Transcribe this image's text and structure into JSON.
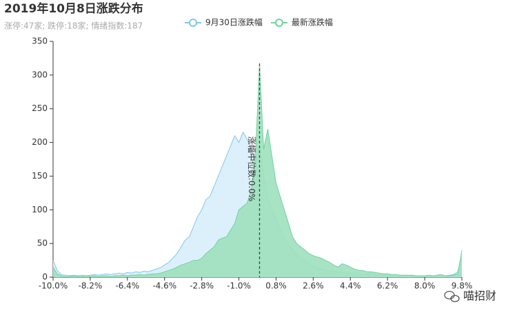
{
  "chart_data": {
    "type": "area",
    "title": "2019年10月8日涨跌分布",
    "subtitle": "涨停:47家; 跌停:18家; 情绪指数:187",
    "watermark": "喵招财",
    "x": [
      -10.0,
      -9.8,
      -9.6,
      -9.4,
      -9.2,
      -9.0,
      -8.8,
      -8.6,
      -8.4,
      -8.2,
      -8.0,
      -7.8,
      -7.6,
      -7.4,
      -7.2,
      -7.0,
      -6.8,
      -6.6,
      -6.4,
      -6.2,
      -6.0,
      -5.8,
      -5.6,
      -5.4,
      -5.2,
      -5.0,
      -4.8,
      -4.6,
      -4.4,
      -4.2,
      -4.0,
      -3.8,
      -3.6,
      -3.4,
      -3.2,
      -3.0,
      -2.8,
      -2.6,
      -2.4,
      -2.2,
      -2.0,
      -1.8,
      -1.6,
      -1.4,
      -1.2,
      -1.0,
      -0.8,
      -0.6,
      -0.4,
      -0.2,
      0.0,
      0.2,
      0.4,
      0.6,
      0.8,
      1.0,
      1.2,
      1.4,
      1.6,
      1.8,
      2.0,
      2.2,
      2.4,
      2.6,
      2.8,
      3.0,
      3.2,
      3.4,
      3.6,
      3.8,
      4.0,
      4.2,
      4.4,
      4.6,
      4.8,
      5.0,
      5.2,
      5.4,
      5.6,
      5.8,
      6.0,
      6.2,
      6.4,
      6.6,
      6.8,
      7.0,
      7.2,
      7.4,
      7.6,
      7.8,
      8.0,
      8.2,
      8.4,
      8.6,
      8.8,
      9.0,
      9.2,
      9.4,
      9.6,
      9.8
    ],
    "series": [
      {
        "name": "9月30日涨跌幅",
        "color": "#7ec8e9",
        "fill": "#dcf0fb",
        "values": [
          25,
          10,
          4,
          3,
          2,
          3,
          2,
          3,
          2,
          3,
          4,
          3,
          4,
          5,
          4,
          5,
          6,
          5,
          7,
          6,
          8,
          7,
          9,
          8,
          10,
          12,
          14,
          18,
          22,
          28,
          35,
          45,
          55,
          60,
          75,
          90,
          100,
          115,
          120,
          135,
          150,
          165,
          180,
          195,
          210,
          200,
          215,
          205,
          190,
          170,
          195,
          150,
          115,
          100,
          85,
          70,
          58,
          48,
          40,
          33,
          28,
          24,
          20,
          16,
          14,
          12,
          10,
          9,
          8,
          8,
          7,
          6,
          6,
          5,
          5,
          4,
          4,
          4,
          3,
          3,
          3,
          3,
          3,
          2,
          2,
          2,
          2,
          2,
          2,
          2,
          2,
          2,
          2,
          2,
          2,
          2,
          3,
          4,
          8,
          30
        ]
      },
      {
        "name": "最新涨跌幅",
        "color": "#6fd3a0",
        "fill": "#9ee0bd",
        "values": [
          15,
          5,
          2,
          1,
          1,
          2,
          1,
          1,
          2,
          1,
          2,
          1,
          2,
          2,
          1,
          2,
          2,
          3,
          2,
          3,
          3,
          4,
          3,
          4,
          5,
          5,
          6,
          8,
          10,
          12,
          15,
          18,
          20,
          22,
          25,
          25,
          28,
          35,
          40,
          45,
          55,
          58,
          60,
          70,
          80,
          100,
          105,
          110,
          130,
          180,
          315,
          190,
          220,
          180,
          140,
          120,
          100,
          80,
          60,
          50,
          45,
          40,
          35,
          32,
          30,
          28,
          25,
          22,
          18,
          15,
          20,
          18,
          15,
          12,
          10,
          10,
          8,
          8,
          7,
          6,
          5,
          5,
          4,
          4,
          3,
          3,
          3,
          3,
          2,
          2,
          2,
          3,
          2,
          3,
          4,
          2,
          2,
          3,
          5,
          40
        ]
      }
    ],
    "median_line": {
      "value": 0.0,
      "label": "涨幅中位数:0.0%"
    },
    "xlim": [
      -10.0,
      9.8
    ],
    "xticks": [
      {
        "value": -10.0,
        "label": "-10.0%"
      },
      {
        "value": -8.2,
        "label": "-8.2%"
      },
      {
        "value": -6.4,
        "label": "-6.4%"
      },
      {
        "value": -4.6,
        "label": "-4.6%"
      },
      {
        "value": -2.8,
        "label": "-2.8%"
      },
      {
        "value": -1.0,
        "label": "-1.0%"
      },
      {
        "value": 0.8,
        "label": "0.8%"
      },
      {
        "value": 2.6,
        "label": "2.6%"
      },
      {
        "value": 4.4,
        "label": "4.4%"
      },
      {
        "value": 6.2,
        "label": "6.2%"
      },
      {
        "value": 8.0,
        "label": "8.0%"
      },
      {
        "value": 9.8,
        "label": "9.8%"
      }
    ],
    "ylim": [
      0,
      350
    ],
    "yticks": [
      0,
      50,
      100,
      150,
      200,
      250,
      300,
      350
    ],
    "grid": false,
    "legend": "top"
  }
}
